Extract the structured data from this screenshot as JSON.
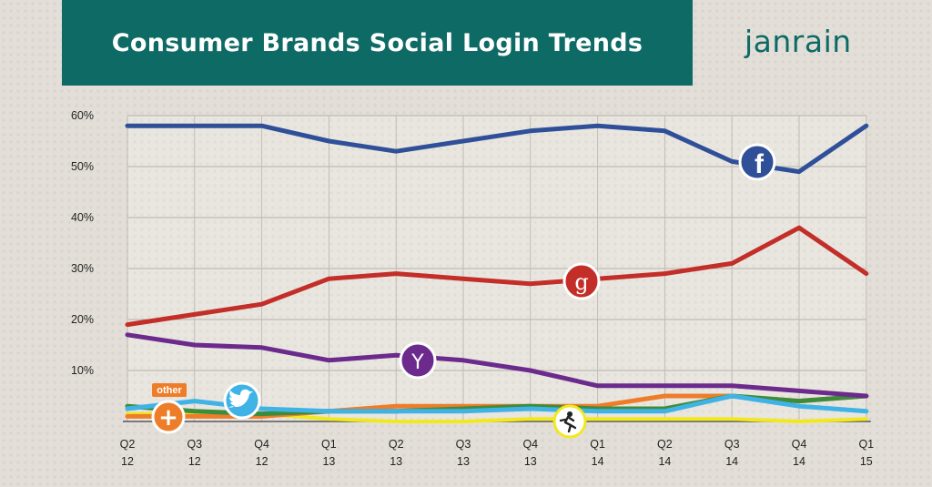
{
  "header": {
    "title": "Consumer Brands Social Login Trends",
    "logo_text": "janrain"
  },
  "colors": {
    "banner": "#0e6a64",
    "facebook": "#2f4f99",
    "google": "#c32e28",
    "yahoo": "#6b2a8c",
    "twitter": "#3fb3e6",
    "other": "#ee7d2a",
    "aol": "#f2e81e",
    "green": "#3c8c3c"
  },
  "icons": {
    "facebook": "facebook-icon",
    "google": "google-icon",
    "yahoo": "yahoo-icon",
    "twitter": "twitter-icon",
    "other": "plus-icon",
    "aol": "aol-running-man-icon"
  },
  "other_label": "other",
  "chart_data": {
    "type": "line",
    "title": "Consumer Brands Social Login Trends",
    "xlabel": "",
    "ylabel": "",
    "ylim": [
      0,
      60
    ],
    "yticks": [
      "60%",
      "50%",
      "40%",
      "30%",
      "20%",
      "10%"
    ],
    "yticks_values": [
      60,
      50,
      40,
      30,
      20,
      10
    ],
    "grid": true,
    "categories": [
      {
        "q": "Q2",
        "yr": "12"
      },
      {
        "q": "Q3",
        "yr": "12"
      },
      {
        "q": "Q4",
        "yr": "12"
      },
      {
        "q": "Q1",
        "yr": "13"
      },
      {
        "q": "Q2",
        "yr": "13"
      },
      {
        "q": "Q3",
        "yr": "13"
      },
      {
        "q": "Q4",
        "yr": "13"
      },
      {
        "q": "Q1",
        "yr": "14"
      },
      {
        "q": "Q2",
        "yr": "14"
      },
      {
        "q": "Q3",
        "yr": "14"
      },
      {
        "q": "Q4",
        "yr": "14"
      },
      {
        "q": "Q1",
        "yr": "15"
      }
    ],
    "series": [
      {
        "key": "facebook",
        "values": [
          58,
          58,
          58,
          55,
          53,
          55,
          57,
          58,
          57,
          51,
          49,
          58
        ]
      },
      {
        "key": "google",
        "values": [
          19,
          21,
          23,
          28,
          29,
          28,
          27,
          28,
          29,
          31,
          38,
          29
        ]
      },
      {
        "key": "yahoo",
        "values": [
          17,
          15,
          14.5,
          12,
          13,
          12,
          10,
          7,
          7,
          7,
          6,
          5
        ]
      },
      {
        "key": "twitter",
        "values": [
          2.5,
          4,
          2.5,
          2,
          2,
          2,
          2.5,
          2,
          2,
          5,
          3,
          2
        ]
      },
      {
        "key": "other",
        "values": [
          1,
          1,
          1,
          2,
          3,
          3,
          3,
          3,
          5,
          5,
          4,
          5
        ]
      },
      {
        "key": "green",
        "values": [
          3,
          2,
          1.5,
          2,
          2,
          2.5,
          3,
          2.5,
          2.5,
          5,
          4,
          5
        ]
      },
      {
        "key": "aol",
        "values": [
          1.5,
          1.5,
          1.5,
          0.5,
          0,
          0,
          0.5,
          0.5,
          0.5,
          0.5,
          0,
          0.5
        ]
      }
    ]
  }
}
